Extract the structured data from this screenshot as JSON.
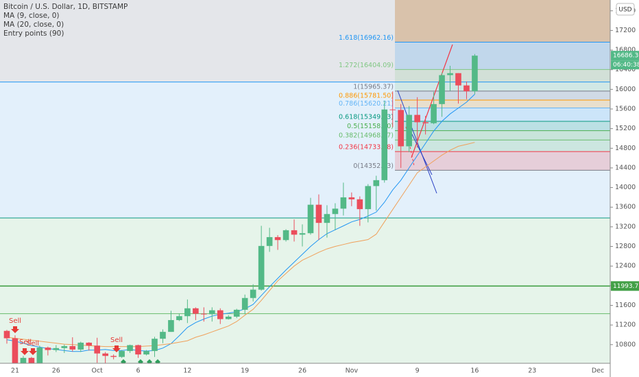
{
  "chart_data": {
    "type": "candlestick",
    "title": "Bitcoin / U.S. Dollar, 1D, BITSTAMP",
    "legend_items": [
      "Entry points (90)"
    ],
    "categories": [
      null,
      "21",
      null,
      null,
      null,
      null,
      "26",
      null,
      null,
      null,
      null,
      "Oct",
      null,
      null,
      null,
      null,
      "6",
      null,
      null,
      null,
      null,
      null,
      "12",
      null,
      null,
      null,
      null,
      null,
      null,
      "19",
      null,
      null,
      null,
      null,
      null,
      null,
      "26",
      null,
      null,
      null,
      null,
      null,
      "Nov",
      null,
      null,
      null,
      null,
      null,
      null,
      null,
      "9",
      null,
      null,
      null,
      null,
      null,
      null,
      "16",
      null,
      null,
      null,
      null,
      null,
      null,
      "23",
      null,
      null,
      null,
      null,
      null,
      null,
      null,
      "Dec",
      null
    ],
    "open": [
      11080,
      10930,
      10420,
      10530,
      10240,
      10740,
      10690,
      10730,
      10770,
      10700,
      10840,
      10780,
      10620,
      10570,
      10550,
      10670,
      10790,
      10600,
      10670,
      10920,
      11060,
      11300,
      11380,
      11540,
      11430,
      11420,
      11500,
      11320,
      11370,
      11510,
      11750,
      11920,
      12810,
      12990,
      12930,
      13130,
      13040,
      13070,
      13650,
      13280,
      13460,
      13570,
      13800,
      13760,
      13560,
      14030,
      14150,
      15590,
      15580,
      14840,
      15480,
      15330,
      15310,
      15700,
      16290,
      16330,
      16080,
      15960,
      null,
      null,
      null,
      null,
      null,
      null,
      null,
      null,
      null,
      null,
      null,
      null,
      null,
      null,
      null,
      null
    ],
    "high": [
      11100,
      10990,
      10570,
      10550,
      10780,
      10760,
      10790,
      10800,
      10950,
      10860,
      10850,
      10940,
      10650,
      10600,
      10690,
      10800,
      10800,
      10690,
      10960,
      11110,
      11490,
      11430,
      11720,
      11560,
      11560,
      11560,
      11540,
      11400,
      11530,
      11820,
      12030,
      13220,
      13180,
      13030,
      13150,
      13350,
      13250,
      13790,
      13860,
      13640,
      13680,
      14100,
      13900,
      13820,
      14070,
      14240,
      15770,
      15960,
      15700,
      15660,
      15840,
      15460,
      15950,
      16340,
      16480,
      16330,
      16160,
      16720,
      null,
      null,
      null,
      null,
      null,
      null,
      null,
      null,
      null,
      null,
      null,
      null,
      null,
      null,
      null,
      null
    ],
    "low": [
      10820,
      10370,
      10360,
      10150,
      10200,
      10580,
      10650,
      10630,
      10660,
      10650,
      10680,
      10430,
      10380,
      10500,
      10530,
      10630,
      10530,
      10580,
      10550,
      10830,
      11060,
      11280,
      11240,
      11300,
      11270,
      11270,
      11220,
      11310,
      11340,
      11420,
      11680,
      11900,
      12690,
      12730,
      12900,
      12900,
      12800,
      13040,
      12930,
      12980,
      13130,
      13430,
      13620,
      13220,
      13290,
      13530,
      14100,
      15230,
      14400,
      14720,
      14810,
      15080,
      15290,
      15440,
      15970,
      15710,
      15800,
      15900,
      null,
      null,
      null,
      null,
      null,
      null,
      null,
      null,
      null,
      null,
      null,
      null,
      null,
      null,
      null,
      null
    ],
    "close": [
      10930,
      10420,
      10530,
      10240,
      10740,
      10690,
      10730,
      10770,
      10700,
      10840,
      10780,
      10620,
      10570,
      10550,
      10670,
      10790,
      10600,
      10670,
      10920,
      11060,
      11300,
      11380,
      11540,
      11430,
      11420,
      11500,
      11320,
      11370,
      11510,
      11750,
      11920,
      12810,
      12990,
      12930,
      13130,
      13040,
      13070,
      13650,
      13280,
      13460,
      13570,
      13800,
      13760,
      13560,
      14030,
      14150,
      15590,
      15580,
      14840,
      15480,
      15330,
      15310,
      15700,
      16290,
      16330,
      16080,
      15960,
      16686.3,
      null,
      null,
      null,
      null,
      null,
      null,
      null,
      null,
      null,
      null,
      null,
      null,
      null,
      null,
      null,
      null
    ],
    "up_color": "#53b987",
    "down_color": "#eb4d5c",
    "series": [
      {
        "name": "MA (9, close, 0)",
        "color": "#2196f3",
        "values": [
          10900,
          10870,
          10830,
          10780,
          10750,
          10720,
          10700,
          10680,
          10660,
          10660,
          10690,
          10690,
          10700,
          10680,
          10680,
          10700,
          10680,
          10670,
          10680,
          10730,
          10820,
          10980,
          11150,
          11250,
          11320,
          11380,
          11420,
          11440,
          11470,
          11530,
          11620,
          11800,
          11980,
          12150,
          12320,
          12480,
          12640,
          12800,
          12940,
          13060,
          13140,
          13220,
          13300,
          13350,
          13420,
          13500,
          13700,
          13950,
          14150,
          14400,
          14650,
          14900,
          15150,
          15350,
          15500,
          15620,
          15740,
          15900,
          null,
          null,
          null,
          null,
          null,
          null,
          null,
          null,
          null,
          null,
          null,
          null,
          null,
          null,
          null,
          null
        ]
      },
      {
        "name": "MA (20, close, 0)",
        "color": "#f0a05a",
        "values": [
          10950,
          10930,
          10910,
          10890,
          10870,
          10850,
          10830,
          10810,
          10800,
          10790,
          10780,
          10770,
          10760,
          10760,
          10760,
          10760,
          10760,
          10770,
          10780,
          10800,
          10820,
          10850,
          10880,
          10950,
          11000,
          11060,
          11120,
          11180,
          11270,
          11400,
          11520,
          11700,
          11900,
          12100,
          12250,
          12400,
          12520,
          12600,
          12680,
          12750,
          12800,
          12840,
          12880,
          12910,
          12940,
          13050,
          13300,
          13550,
          13800,
          14050,
          14300,
          14420,
          14540,
          14660,
          14760,
          14840,
          14880,
          14920,
          null,
          null,
          null,
          null,
          null,
          null,
          null,
          null,
          null,
          null,
          null,
          null,
          null,
          null,
          null,
          null
        ]
      }
    ],
    "fib_levels": [
      {
        "value": 16962.16,
        "label": "1.618(16962.16)",
        "color": "#2196f3"
      },
      {
        "value": 16404.09,
        "label": "1.272(16404.09)",
        "color": "#81c784"
      },
      {
        "value": 15965.37,
        "label": "1(15965.37)",
        "color": "#787b86"
      },
      {
        "value": 15781.5,
        "label": "0.886(15781.50)",
        "color": "#ff9800"
      },
      {
        "value": 15620.21,
        "label": "0.786(15620.21)",
        "color": "#64b5f6"
      },
      {
        "value": 15349.23,
        "label": "0.618(15349.23)",
        "color": "#089981"
      },
      {
        "value": 15158.9,
        "label": "0.5(15158.90)",
        "color": "#4caf50"
      },
      {
        "value": 14968.57,
        "label": "0.382(14968.57)",
        "color": "#66bb6a"
      },
      {
        "value": 14733.08,
        "label": "0.236(14733.08)",
        "color": "#f23645"
      },
      {
        "value": 14352.43,
        "label": "0(14352.43)",
        "color": "#787b86"
      }
    ],
    "levels": [
      {
        "value": 16150,
        "color": "#2196f3"
      },
      {
        "value": 13380,
        "color": "#089981"
      },
      {
        "value": 11993.71,
        "color": "#43a047",
        "tag": true
      },
      {
        "value": 11430,
        "color": "#66bb6a"
      }
    ],
    "last_price": {
      "value": 16686.3,
      "label": "16686.30"
    },
    "countdown": "06:40:38",
    "currency": "USD",
    "signals": [
      "Sell",
      "Sell",
      "Sell",
      "Sell"
    ],
    "ylim": [
      10420,
      17820
    ],
    "yticks": [
      10800,
      11200,
      11600,
      12000,
      12400,
      12800,
      13200,
      13600,
      14000,
      14400,
      14800,
      15200,
      15600,
      16000,
      16400,
      16800,
      17200,
      17600
    ]
  }
}
